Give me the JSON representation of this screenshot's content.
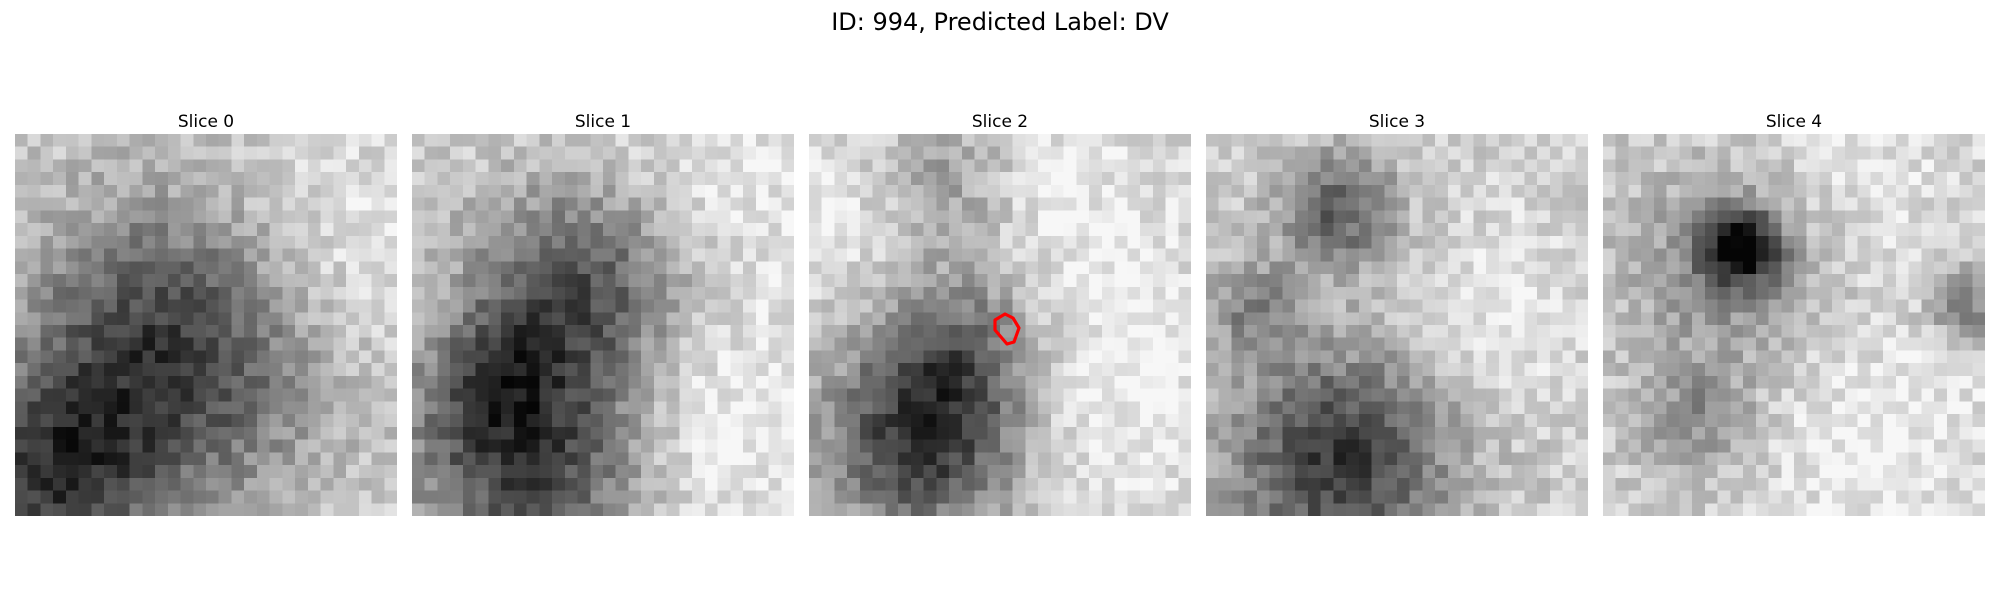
{
  "figure": {
    "title": "ID: 994, Predicted Label: DV"
  },
  "slices": [
    {
      "title": "Slice 0",
      "dark_blobs": [
        [
          0.4,
          0.58,
          0.38,
          0.95
        ],
        [
          0.1,
          0.9,
          0.25,
          0.8
        ]
      ],
      "light_blobs": [
        [
          0.85,
          0.3,
          0.3,
          0.7
        ]
      ],
      "contour": false
    },
    {
      "title": "Slice 1",
      "dark_blobs": [
        [
          0.3,
          0.85,
          0.3,
          0.9
        ],
        [
          0.45,
          0.4,
          0.28,
          0.8
        ],
        [
          0.18,
          0.6,
          0.18,
          0.6
        ]
      ],
      "light_blobs": [
        [
          0.12,
          0.55,
          0.15,
          0.85
        ],
        [
          0.8,
          0.75,
          0.3,
          0.8
        ],
        [
          0.8,
          0.15,
          0.4,
          0.6
        ]
      ],
      "contour": false
    },
    {
      "title": "Slice 2",
      "dark_blobs": [
        [
          0.3,
          0.8,
          0.25,
          0.95
        ],
        [
          0.4,
          0.55,
          0.22,
          0.55
        ],
        [
          0.35,
          0.12,
          0.18,
          0.35
        ]
      ],
      "light_blobs": [
        [
          0.8,
          0.7,
          0.35,
          0.75
        ],
        [
          0.1,
          0.2,
          0.25,
          0.55
        ],
        [
          0.7,
          0.2,
          0.3,
          0.55
        ]
      ],
      "contour": true
    },
    {
      "title": "Slice 3",
      "dark_blobs": [
        [
          0.35,
          0.85,
          0.28,
          0.95
        ],
        [
          0.35,
          0.2,
          0.15,
          0.7
        ],
        [
          0.12,
          0.45,
          0.12,
          0.45
        ]
      ],
      "light_blobs": [
        [
          0.78,
          0.45,
          0.25,
          0.6
        ]
      ],
      "contour": false
    },
    {
      "title": "Slice 4",
      "dark_blobs": [
        [
          0.36,
          0.3,
          0.1,
          1.1
        ],
        [
          0.35,
          0.35,
          0.28,
          0.45
        ],
        [
          0.95,
          0.45,
          0.1,
          0.55
        ],
        [
          0.25,
          0.75,
          0.15,
          0.4
        ]
      ],
      "light_blobs": [
        [
          0.7,
          0.8,
          0.35,
          0.7
        ],
        [
          0.6,
          0.1,
          0.35,
          0.55
        ]
      ],
      "contour": false
    }
  ]
}
